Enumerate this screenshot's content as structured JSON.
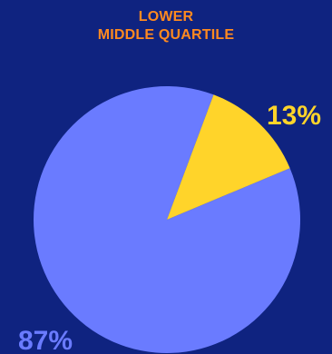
{
  "chart_data": {
    "type": "pie",
    "title_lines": [
      "LOWER",
      "MIDDLE QUARTILE"
    ],
    "slices": [
      {
        "label": "13%",
        "value": 13,
        "color": "#ffd42a",
        "label_color": "#ffd42a"
      },
      {
        "label": "87%",
        "value": 87,
        "color": "#6a7bff",
        "label_color": "#6a7bff"
      }
    ]
  }
}
